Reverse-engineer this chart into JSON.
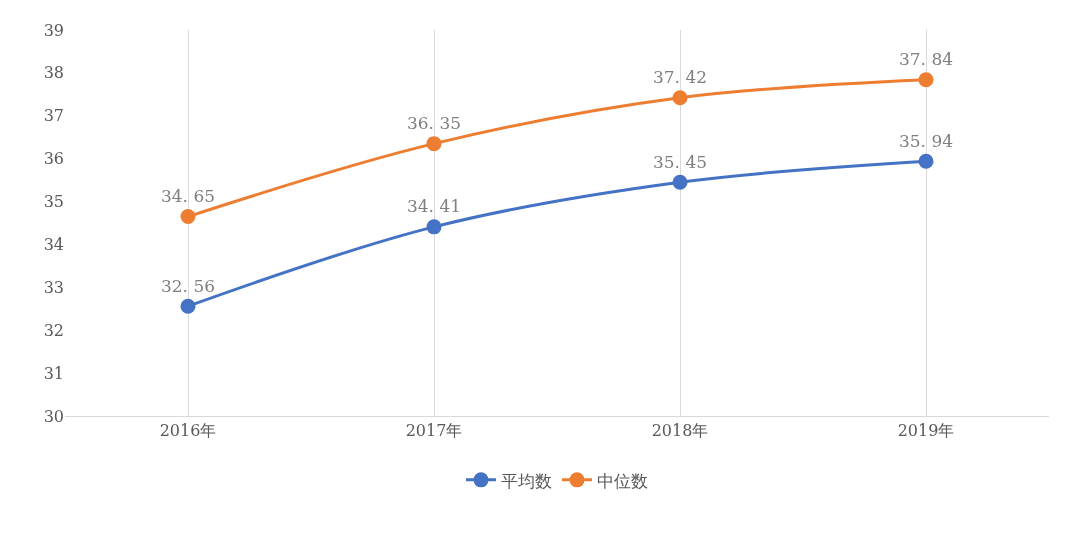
{
  "chart_data": {
    "type": "line",
    "categories": [
      "2016年",
      "2017年",
      "2018年",
      "2019年"
    ],
    "series": [
      {
        "name": "平均数",
        "color": "#4472c4",
        "values": [
          32.56,
          34.41,
          35.45,
          35.94
        ]
      },
      {
        "name": "中位数",
        "color": "#ed7d31",
        "values": [
          34.65,
          36.35,
          37.42,
          37.84
        ]
      }
    ],
    "ylim": [
      30,
      39
    ],
    "yticks": [
      30,
      31,
      32,
      33,
      34,
      35,
      36,
      37,
      38,
      39
    ],
    "grid": "x",
    "legend": "bottom",
    "marker": "circle",
    "line_style": "solid",
    "data_labels": true
  }
}
